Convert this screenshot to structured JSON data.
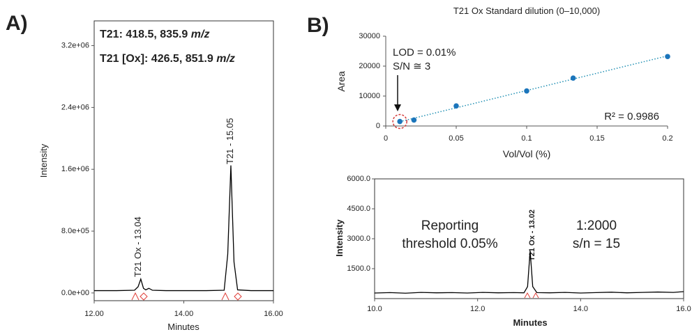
{
  "chart_data": [
    {
      "type": "line",
      "panel_label": "A)",
      "annotations": [
        {
          "text": "T21: 418.5, 835.9",
          "unit": "m/z"
        },
        {
          "text": "T21 [Ox]: 426.5, 851.9",
          "unit": "m/z"
        }
      ],
      "peak_labels": [
        "T21 Ox - 13.04",
        "T21 - 15.05"
      ],
      "x_label": "Minutes",
      "y_label": "Intensity",
      "color": "#000000",
      "x": [
        12,
        12.5,
        12.9,
        12.98,
        13.04,
        13.1,
        13.15,
        13.22,
        13.3,
        13.6,
        14,
        14.5,
        14.9,
        14.98,
        15.05,
        15.12,
        15.2,
        15.5,
        16
      ],
      "values": [
        30000,
        30000,
        35000,
        80000,
        180000,
        60000,
        40000,
        60000,
        35000,
        30000,
        30000,
        30000,
        35000,
        500000,
        1650000,
        400000,
        40000,
        30000,
        30000
      ],
      "xlim": [
        12,
        16
      ],
      "xticks": [
        {
          "value": 12,
          "label": "12.00"
        },
        {
          "value": 14,
          "label": "14.00"
        },
        {
          "value": 16,
          "label": "16.00"
        }
      ],
      "ylim": [
        -100000,
        3520000
      ],
      "yticks": [
        {
          "value": 0,
          "label": "0.0e+00"
        },
        {
          "value": 800000,
          "label": "8.0e+05"
        },
        {
          "value": 1600000,
          "label": "1.6e+06"
        },
        {
          "value": 2400000,
          "label": "2.4e+06"
        },
        {
          "value": 3200000,
          "label": "3.2e+06"
        }
      ]
    },
    {
      "type": "scatter",
      "panel_label": "B)",
      "title": "T21 Ox Standard dilution (0–10,000)",
      "x_label": "Vol/Vol (%)",
      "y_label": "Area",
      "annotations": [
        "LOD = 0.01%",
        "S/N ≅ 3",
        "R² = 0.9986"
      ],
      "color": "#1b75bb",
      "trendline": {
        "color": "#1f8fb3",
        "style": "dotted"
      },
      "x": [
        0.01,
        0.02,
        0.05,
        0.1,
        0.133,
        0.2
      ],
      "values": [
        1500,
        2000,
        6700,
        11700,
        16000,
        23200
      ],
      "xlim": [
        0,
        0.2
      ],
      "xticks": [
        0,
        0.05,
        0.1,
        0.15,
        0.2
      ],
      "ylim": [
        0,
        30000
      ],
      "yticks": [
        0,
        10000,
        20000,
        30000
      ]
    },
    {
      "type": "line",
      "x_label": "Minutes",
      "y_label": "Intensity",
      "annotations": [
        "Reporting",
        "threshold 0.05%",
        "1:2000",
        "s/n = 15"
      ],
      "peak_labels": [
        "T21 Ox - 13.02"
      ],
      "color": "#000000",
      "x": [
        10,
        10.3,
        10.6,
        10.9,
        11.2,
        11.5,
        11.8,
        12.1,
        12.4,
        12.7,
        12.9,
        12.97,
        13.02,
        13.07,
        13.15,
        13.4,
        13.7,
        14,
        14.3,
        14.6,
        14.9,
        15.2,
        15.5,
        15.8,
        16
      ],
      "values": [
        280,
        300,
        270,
        310,
        290,
        300,
        280,
        310,
        290,
        300,
        290,
        600,
        2400,
        600,
        300,
        290,
        310,
        280,
        300,
        320,
        290,
        310,
        330,
        310,
        350
      ],
      "xlim": [
        10,
        16
      ],
      "xticks": [
        {
          "value": 10,
          "label": "10.0"
        },
        {
          "value": 12,
          "label": "12.0"
        },
        {
          "value": 14,
          "label": "14.0"
        },
        {
          "value": 16,
          "label": "16.0"
        }
      ],
      "ylim": [
        0,
        6000
      ],
      "yticks": [
        {
          "value": 1500,
          "label": "1500.0"
        },
        {
          "value": 3000,
          "label": "3000.0"
        },
        {
          "value": 4500,
          "label": "4500.0"
        },
        {
          "value": 6000,
          "label": "6000.0"
        }
      ]
    }
  ]
}
